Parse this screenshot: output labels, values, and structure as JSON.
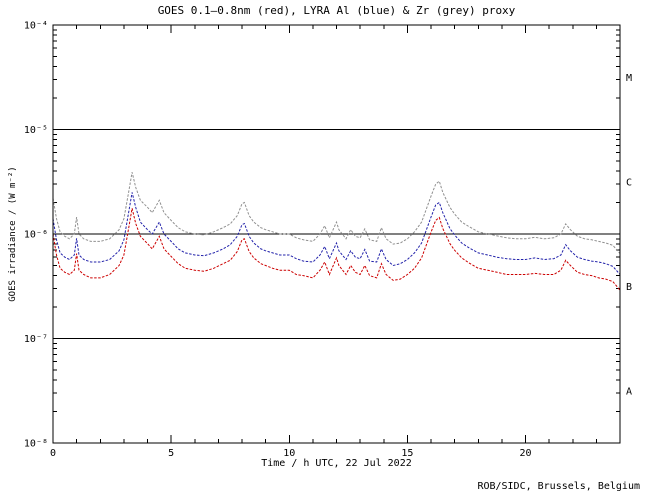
{
  "chart_data": {
    "type": "line",
    "title": "GOES 0.1–0.8nm (red), LYRA Al (blue) & Zr (grey) proxy",
    "xlabel": "Time / h UTC, 22 Jul 2022",
    "ylabel": "GOES irradiance / (W m⁻²)",
    "credit": "ROB/SIDC, Brussels, Belgium",
    "xlim": [
      0,
      24
    ],
    "ylim": [
      1e-08,
      0.0001
    ],
    "ylog": true,
    "grid": false,
    "x_major_ticks": [
      0,
      5,
      10,
      15,
      20
    ],
    "x_minor_step": 1,
    "y_tick_exponents": [
      -8,
      -7,
      -6,
      -5,
      -4
    ],
    "y_tick_labels": [
      "10⁻⁸",
      "10⁻⁷",
      "10⁻⁶",
      "10⁻⁵",
      "10⁻⁴"
    ],
    "hlines": [
      1e-05,
      1e-06,
      1e-07
    ],
    "flare_classes": [
      {
        "label": "M",
        "y": 3.16e-05
      },
      {
        "label": "C",
        "y": 3.16e-06
      },
      {
        "label": "B",
        "y": 3.16e-07
      },
      {
        "label": "A",
        "y": 3.16e-08
      }
    ],
    "colors": {
      "goes": "#cc0000",
      "lyra_al": "#2222aa",
      "lyra_zr": "#909090"
    },
    "x": [
      0.0,
      0.15,
      0.3,
      0.5,
      0.7,
      0.9,
      1.0,
      1.1,
      1.3,
      1.6,
      2.0,
      2.4,
      2.8,
      3.0,
      3.2,
      3.35,
      3.5,
      3.7,
      4.0,
      4.2,
      4.5,
      4.7,
      5.0,
      5.3,
      5.6,
      6.0,
      6.4,
      6.8,
      7.2,
      7.5,
      7.8,
      8.0,
      8.1,
      8.3,
      8.5,
      8.8,
      9.0,
      9.3,
      9.6,
      10.0,
      10.3,
      10.6,
      11.0,
      11.3,
      11.5,
      11.7,
      12.0,
      12.1,
      12.4,
      12.6,
      12.8,
      13.0,
      13.2,
      13.4,
      13.7,
      13.9,
      14.1,
      14.4,
      14.7,
      15.0,
      15.3,
      15.6,
      16.0,
      16.2,
      16.35,
      16.5,
      16.8,
      17.0,
      17.3,
      17.6,
      18.0,
      18.4,
      18.8,
      19.2,
      19.6,
      20.0,
      20.4,
      20.8,
      21.2,
      21.5,
      21.7,
      21.9,
      22.2,
      22.5,
      22.8,
      23.1,
      23.4,
      23.7,
      24.0
    ],
    "series": [
      {
        "id": "lyra_zr",
        "name": "LYRA Zr proxy (grey)",
        "color": "#909090",
        "values": [
          2.2e-06,
          1.4e-06,
          1.05e-06,
          9.5e-07,
          9e-07,
          1e-06,
          1.45e-06,
          1e-06,
          9e-07,
          8.5e-07,
          8.5e-07,
          9e-07,
          1.1e-06,
          1.4e-06,
          2.5e-06,
          3.9e-06,
          2.8e-06,
          2.1e-06,
          1.8e-06,
          1.6e-06,
          2.1e-06,
          1.6e-06,
          1.35e-06,
          1.15e-06,
          1.05e-06,
          1e-06,
          9.8e-07,
          1.05e-06,
          1.15e-06,
          1.25e-06,
          1.5e-06,
          1.95e-06,
          2e-06,
          1.5e-06,
          1.3e-06,
          1.15e-06,
          1.1e-06,
          1.05e-06,
          1e-06,
          1e-06,
          9.2e-07,
          8.8e-07,
          8.5e-07,
          1e-06,
          1.2e-06,
          9.2e-07,
          1.3e-06,
          1.1e-06,
          9e-07,
          1.1e-06,
          9.5e-07,
          9.2e-07,
          1.12e-06,
          8.8e-07,
          8.5e-07,
          1.15e-06,
          9e-07,
          8e-07,
          8.2e-07,
          9e-07,
          1.05e-06,
          1.3e-06,
          2.3e-06,
          3e-06,
          3.2e-06,
          2.5e-06,
          1.8e-06,
          1.55e-06,
          1.3e-06,
          1.18e-06,
          1.05e-06,
          1e-06,
          9.6e-07,
          9.2e-07,
          9e-07,
          9e-07,
          9.3e-07,
          9e-07,
          9.2e-07,
          1e-06,
          1.25e-06,
          1.1e-06,
          9.5e-07,
          9e-07,
          8.8e-07,
          8.5e-07,
          8.2e-07,
          7.8e-07,
          6.5e-07
        ]
      },
      {
        "id": "lyra_al",
        "name": "LYRA Al (blue)",
        "color": "#2222aa",
        "values": [
          1.4e-06,
          8.8e-07,
          6.6e-07,
          6e-07,
          5.7e-07,
          6.3e-07,
          9.1e-07,
          6.3e-07,
          5.7e-07,
          5.4e-07,
          5.4e-07,
          5.7e-07,
          6.9e-07,
          8.8e-07,
          1.6e-06,
          2.5e-06,
          1.8e-06,
          1.3e-06,
          1.1e-06,
          1e-06,
          1.3e-06,
          1e-06,
          8.5e-07,
          7.2e-07,
          6.6e-07,
          6.3e-07,
          6.2e-07,
          6.6e-07,
          7.2e-07,
          7.9e-07,
          9.5e-07,
          1.23e-06,
          1.26e-06,
          9.5e-07,
          8.2e-07,
          7.2e-07,
          6.9e-07,
          6.6e-07,
          6.3e-07,
          6.3e-07,
          5.8e-07,
          5.5e-07,
          5.4e-07,
          6.3e-07,
          7.6e-07,
          5.8e-07,
          8.2e-07,
          6.9e-07,
          5.7e-07,
          6.9e-07,
          6e-07,
          5.8e-07,
          7.1e-07,
          5.5e-07,
          5.4e-07,
          7.2e-07,
          5.7e-07,
          5e-07,
          5.2e-07,
          5.7e-07,
          6.6e-07,
          8.2e-07,
          1.45e-06,
          1.9e-06,
          2e-06,
          1.6e-06,
          1.13e-06,
          9.8e-07,
          8.2e-07,
          7.4e-07,
          6.6e-07,
          6.3e-07,
          6e-07,
          5.8e-07,
          5.7e-07,
          5.7e-07,
          5.9e-07,
          5.7e-07,
          5.8e-07,
          6.3e-07,
          7.9e-07,
          6.9e-07,
          6e-07,
          5.7e-07,
          5.5e-07,
          5.4e-07,
          5.2e-07,
          4.9e-07,
          4.1e-07
        ]
      },
      {
        "id": "goes",
        "name": "GOES 0.1–0.8nm (red)",
        "color": "#cc0000",
        "values": [
          1e-06,
          6.3e-07,
          4.7e-07,
          4.3e-07,
          4.1e-07,
          4.5e-07,
          6.5e-07,
          4.5e-07,
          4.1e-07,
          3.8e-07,
          3.8e-07,
          4.1e-07,
          5e-07,
          6.3e-07,
          1.13e-06,
          1.76e-06,
          1.26e-06,
          9.5e-07,
          8.1e-07,
          7.2e-07,
          9.5e-07,
          7.2e-07,
          6.1e-07,
          5.2e-07,
          4.7e-07,
          4.5e-07,
          4.4e-07,
          4.7e-07,
          5.2e-07,
          5.6e-07,
          6.8e-07,
          8.8e-07,
          9e-07,
          6.8e-07,
          5.9e-07,
          5.2e-07,
          5e-07,
          4.7e-07,
          4.5e-07,
          4.5e-07,
          4.1e-07,
          4e-07,
          3.8e-07,
          4.5e-07,
          5.4e-07,
          4.1e-07,
          5.9e-07,
          5e-07,
          4.1e-07,
          5e-07,
          4.3e-07,
          4.1e-07,
          5e-07,
          4e-07,
          3.8e-07,
          5.2e-07,
          4.1e-07,
          3.6e-07,
          3.7e-07,
          4.1e-07,
          4.7e-07,
          5.9e-07,
          1.04e-06,
          1.35e-06,
          1.44e-06,
          1.13e-06,
          8.1e-07,
          7e-07,
          5.9e-07,
          5.3e-07,
          4.7e-07,
          4.5e-07,
          4.3e-07,
          4.1e-07,
          4.1e-07,
          4.1e-07,
          4.2e-07,
          4.1e-07,
          4.1e-07,
          4.5e-07,
          5.6e-07,
          5e-07,
          4.3e-07,
          4.1e-07,
          4e-07,
          3.8e-07,
          3.7e-07,
          3.5e-07,
          2.9e-07
        ]
      }
    ]
  }
}
